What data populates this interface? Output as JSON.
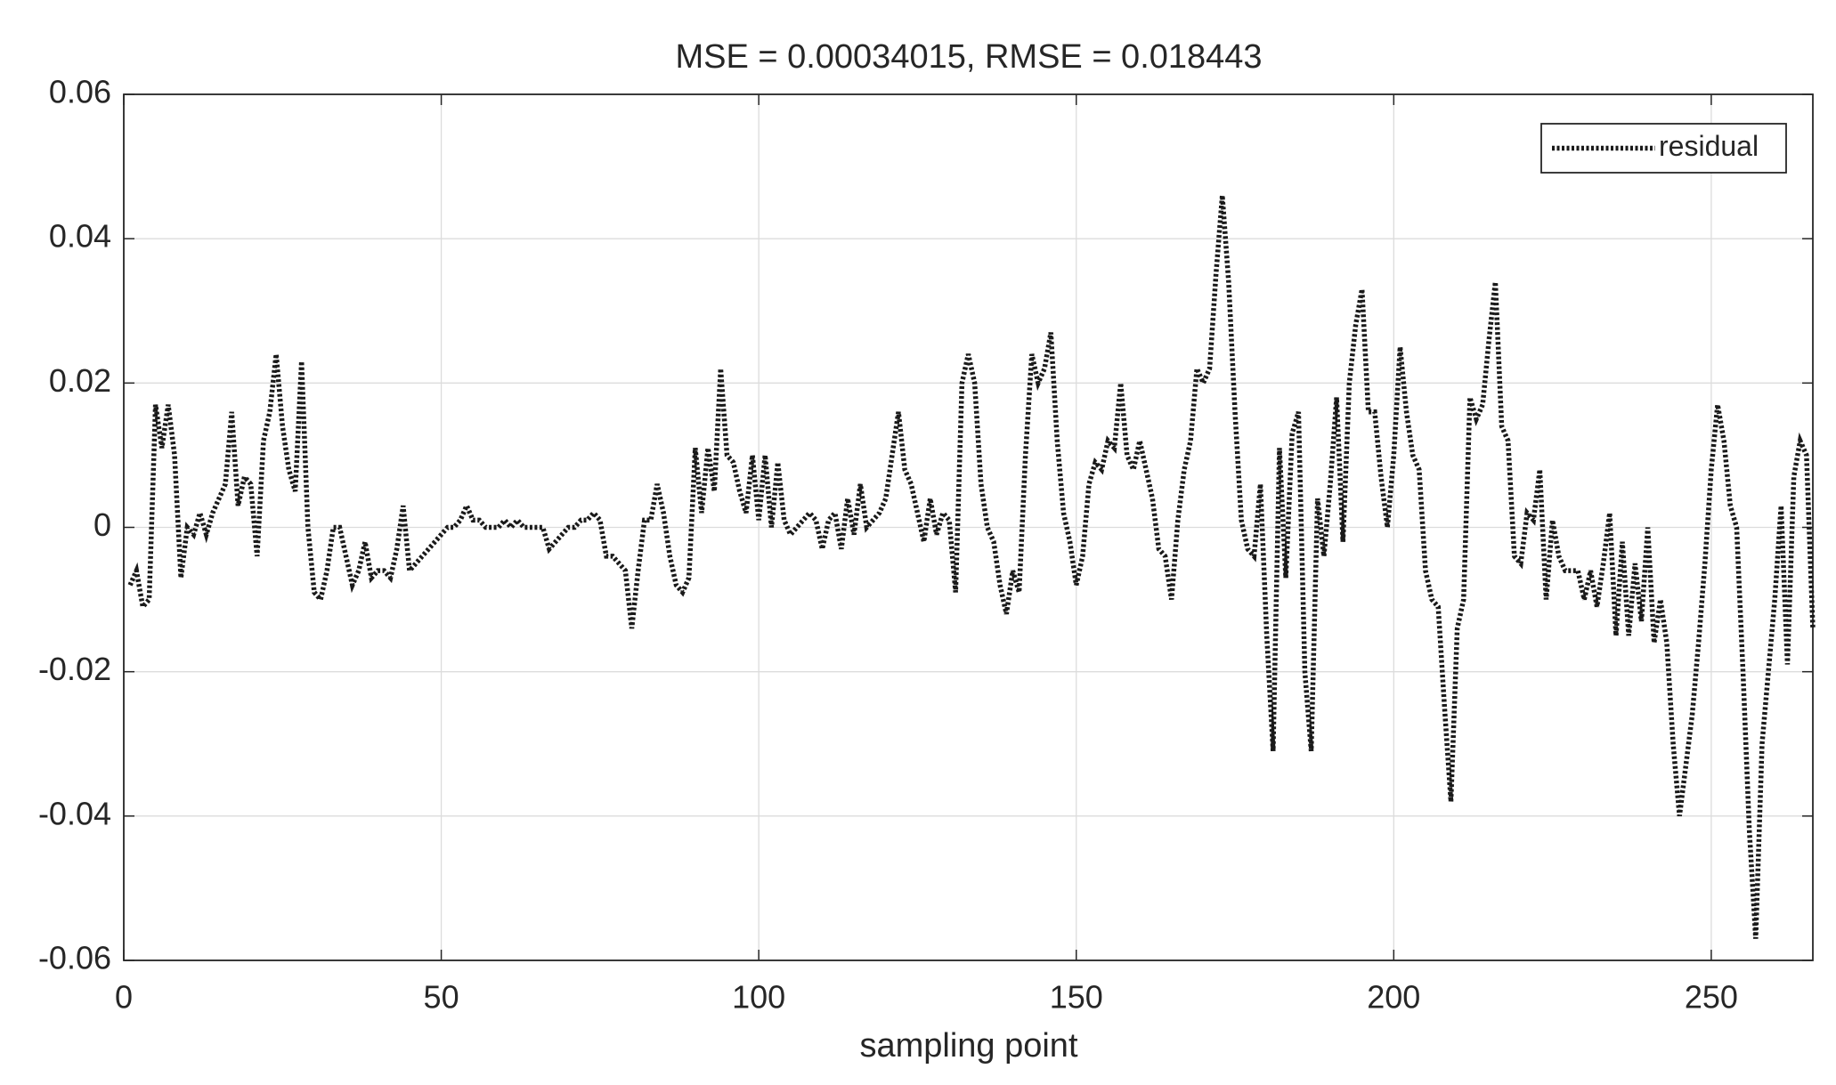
{
  "chart_data": {
    "type": "line",
    "title": "MSE = 0.00034015, RMSE = 0.018443",
    "xlabel": "sampling point",
    "xlim": [
      0,
      266
    ],
    "xticks": [
      0,
      50,
      100,
      150,
      200,
      250
    ],
    "ylim": [
      -0.06,
      0.06
    ],
    "yticks": [
      -0.06,
      -0.04,
      -0.02,
      0,
      0.02,
      0.04,
      0.06
    ],
    "grid": true,
    "legend": "upper right",
    "x": [
      1,
      2,
      3,
      4,
      5,
      6,
      7,
      8,
      9,
      10,
      11,
      12,
      13,
      14,
      15,
      16,
      17,
      18,
      19,
      20,
      21,
      22,
      23,
      24,
      25,
      26,
      27,
      28,
      29,
      30,
      31,
      32,
      33,
      34,
      35,
      36,
      37,
      38,
      39,
      40,
      41,
      42,
      43,
      44,
      45,
      46,
      47,
      48,
      49,
      50,
      51,
      52,
      53,
      54,
      55,
      56,
      57,
      58,
      59,
      60,
      61,
      62,
      63,
      64,
      65,
      66,
      67,
      68,
      69,
      70,
      71,
      72,
      73,
      74,
      75,
      76,
      77,
      78,
      79,
      80,
      81,
      82,
      83,
      84,
      85,
      86,
      87,
      88,
      89,
      90,
      91,
      92,
      93,
      94,
      95,
      96,
      97,
      98,
      99,
      100,
      101,
      102,
      103,
      104,
      105,
      106,
      107,
      108,
      109,
      110,
      111,
      112,
      113,
      114,
      115,
      116,
      117,
      118,
      119,
      120,
      121,
      122,
      123,
      124,
      125,
      126,
      127,
      128,
      129,
      130,
      131,
      132,
      133,
      134,
      135,
      136,
      137,
      138,
      139,
      140,
      141,
      142,
      143,
      144,
      145,
      146,
      147,
      148,
      149,
      150,
      151,
      152,
      153,
      154,
      155,
      156,
      157,
      158,
      159,
      160,
      161,
      162,
      163,
      164,
      165,
      166,
      167,
      168,
      169,
      170,
      171,
      172,
      173,
      174,
      175,
      176,
      177,
      178,
      179,
      180,
      181,
      182,
      183,
      184,
      185,
      186,
      187,
      188,
      189,
      190,
      191,
      192,
      193,
      194,
      195,
      196,
      197,
      198,
      199,
      200,
      201,
      202,
      203,
      204,
      205,
      206,
      207,
      208,
      209,
      210,
      211,
      212,
      213,
      214,
      215,
      216,
      217,
      218,
      219,
      220,
      221,
      222,
      223,
      224,
      225,
      226,
      227,
      228,
      229,
      230,
      231,
      232,
      233,
      234,
      235,
      236,
      237,
      238,
      239,
      240,
      241,
      242,
      243,
      244,
      245,
      246,
      247,
      248,
      249,
      250,
      251,
      252,
      253,
      254,
      255,
      256,
      257,
      258,
      259,
      260,
      261,
      262,
      263,
      264,
      265,
      266
    ],
    "series": [
      {
        "name": "residual",
        "color": "#1a1a1a",
        "values": [
          -0.008,
          -0.006,
          -0.011,
          -0.01,
          0.017,
          0.011,
          0.017,
          0.01,
          -0.007,
          0.0,
          -0.001,
          0.002,
          -0.001,
          0.002,
          0.004,
          0.006,
          0.016,
          0.003,
          0.007,
          0.006,
          -0.004,
          0.012,
          0.016,
          0.024,
          0.014,
          0.008,
          0.005,
          0.023,
          0.0,
          -0.009,
          -0.01,
          -0.006,
          0.0,
          0.0,
          -0.004,
          -0.008,
          -0.006,
          -0.002,
          -0.007,
          -0.006,
          -0.006,
          -0.007,
          -0.003,
          0.003,
          -0.006,
          -0.005,
          -0.004,
          -0.003,
          -0.002,
          -0.001,
          0.0,
          0.0,
          0.001,
          0.003,
          0.001,
          0.001,
          0.0,
          0.0,
          0.0,
          0.001,
          0.0,
          0.001,
          0.0,
          0.0,
          0.0,
          0.0,
          -0.003,
          -0.002,
          -0.001,
          0.0,
          0.0,
          0.001,
          0.001,
          0.002,
          0.001,
          -0.004,
          -0.004,
          -0.005,
          -0.006,
          -0.014,
          -0.006,
          0.001,
          0.001,
          0.006,
          0.002,
          -0.004,
          -0.008,
          -0.009,
          -0.007,
          0.011,
          0.002,
          0.011,
          0.005,
          0.022,
          0.01,
          0.009,
          0.005,
          0.002,
          0.01,
          0.001,
          0.01,
          0.0,
          0.009,
          0.001,
          -0.001,
          0.0,
          0.001,
          0.002,
          0.001,
          -0.003,
          0.001,
          0.002,
          -0.003,
          0.004,
          -0.001,
          0.006,
          0.0,
          0.001,
          0.002,
          0.004,
          0.01,
          0.016,
          0.008,
          0.006,
          0.002,
          -0.002,
          0.004,
          -0.001,
          0.002,
          0.001,
          -0.009,
          0.02,
          0.024,
          0.02,
          0.006,
          0.0,
          -0.002,
          -0.008,
          -0.012,
          -0.006,
          -0.009,
          0.01,
          0.024,
          0.02,
          0.022,
          0.027,
          0.012,
          0.002,
          -0.002,
          -0.008,
          -0.004,
          0.006,
          0.009,
          0.008,
          0.012,
          0.011,
          0.02,
          0.01,
          0.008,
          0.012,
          0.008,
          0.004,
          -0.003,
          -0.004,
          -0.01,
          0.001,
          0.008,
          0.012,
          0.022,
          0.02,
          0.022,
          0.035,
          0.046,
          0.034,
          0.016,
          0.001,
          -0.003,
          -0.004,
          0.006,
          -0.015,
          -0.031,
          0.011,
          -0.007,
          0.013,
          0.016,
          -0.02,
          -0.031,
          0.004,
          -0.004,
          0.006,
          0.018,
          -0.002,
          0.02,
          0.028,
          0.033,
          0.016,
          0.016,
          0.007,
          0.0,
          0.01,
          0.025,
          0.016,
          0.01,
          0.008,
          -0.006,
          -0.01,
          -0.011,
          -0.025,
          -0.038,
          -0.014,
          -0.01,
          0.018,
          0.015,
          0.017,
          0.026,
          0.034,
          0.014,
          0.012,
          -0.004,
          -0.005,
          0.002,
          0.001,
          0.008,
          -0.01,
          0.001,
          -0.004,
          -0.006,
          -0.006,
          -0.006,
          -0.01,
          -0.006,
          -0.011,
          -0.005,
          0.002,
          -0.015,
          -0.002,
          -0.015,
          -0.005,
          -0.013,
          0.0,
          -0.016,
          -0.01,
          -0.016,
          -0.03,
          -0.04,
          -0.033,
          -0.026,
          -0.016,
          -0.005,
          0.008,
          0.017,
          0.012,
          0.003,
          0.0,
          -0.02,
          -0.042,
          -0.057,
          -0.03,
          -0.02,
          -0.01,
          0.003,
          -0.019,
          0.007,
          0.012,
          0.01,
          -0.014
        ]
      }
    ]
  }
}
